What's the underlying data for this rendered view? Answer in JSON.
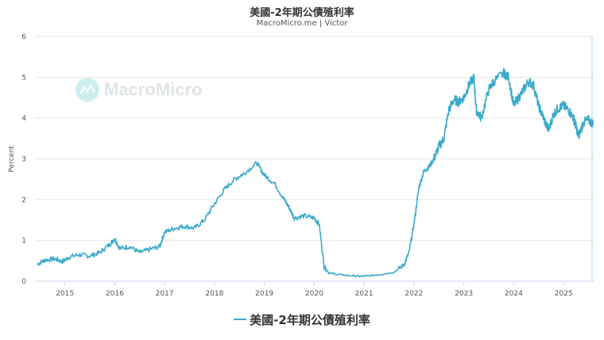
{
  "chart_data": {
    "type": "line",
    "title": "美國-2年期公債殖利率",
    "subtitle": "MacroMicro.me | Victor",
    "ylabel": "Percent",
    "xlabel": "",
    "ylim": [
      0,
      6
    ],
    "xlim": [
      2014.4,
      2025.62
    ],
    "y_ticks": [
      0,
      1,
      2,
      3,
      4,
      5,
      6
    ],
    "x_ticks": [
      "2015",
      "2016",
      "2017",
      "2018",
      "2019",
      "2020",
      "2021",
      "2022",
      "2023",
      "2024",
      "2025"
    ],
    "grid": true,
    "legend": "bottom-center",
    "series": [
      {
        "name": "美國-2年期公債殖利率",
        "color": "#3aa9c9",
        "x": [
          2014.45,
          2014.6,
          2014.8,
          2014.95,
          2015.1,
          2015.3,
          2015.5,
          2015.7,
          2015.9,
          2016.0,
          2016.1,
          2016.3,
          2016.5,
          2016.7,
          2016.9,
          2017.0,
          2017.2,
          2017.4,
          2017.6,
          2017.8,
          2018.0,
          2018.2,
          2018.4,
          2018.6,
          2018.85,
          2019.0,
          2019.2,
          2019.4,
          2019.5,
          2019.6,
          2019.8,
          2020.0,
          2020.1,
          2020.2,
          2020.3,
          2020.5,
          2020.8,
          2021.0,
          2021.3,
          2021.6,
          2021.8,
          2021.9,
          2022.0,
          2022.1,
          2022.2,
          2022.3,
          2022.4,
          2022.5,
          2022.6,
          2022.7,
          2022.8,
          2022.9,
          2023.0,
          2023.1,
          2023.2,
          2023.25,
          2023.35,
          2023.5,
          2023.6,
          2023.8,
          2023.9,
          2024.0,
          2024.1,
          2024.2,
          2024.3,
          2024.4,
          2024.5,
          2024.6,
          2024.7,
          2024.8,
          2024.9,
          2025.0,
          2025.1,
          2025.2,
          2025.25,
          2025.3,
          2025.4,
          2025.5,
          2025.6
        ],
        "values": [
          0.42,
          0.52,
          0.55,
          0.48,
          0.6,
          0.65,
          0.62,
          0.7,
          0.9,
          1.05,
          0.8,
          0.85,
          0.7,
          0.78,
          0.85,
          1.2,
          1.3,
          1.35,
          1.3,
          1.5,
          1.9,
          2.25,
          2.5,
          2.65,
          2.9,
          2.6,
          2.4,
          2.0,
          1.8,
          1.55,
          1.6,
          1.55,
          1.4,
          0.35,
          0.2,
          0.16,
          0.13,
          0.12,
          0.16,
          0.22,
          0.4,
          0.7,
          1.4,
          2.3,
          2.7,
          2.8,
          3.0,
          3.3,
          3.5,
          4.2,
          4.45,
          4.4,
          4.5,
          4.8,
          5.0,
          4.2,
          4.0,
          4.7,
          4.9,
          5.1,
          5.0,
          4.3,
          4.5,
          4.7,
          4.9,
          4.8,
          4.3,
          4.0,
          3.7,
          4.1,
          4.25,
          4.3,
          4.2,
          4.0,
          3.8,
          3.55,
          3.9,
          3.95,
          3.85
        ]
      }
    ]
  },
  "watermark": "MacroMicro"
}
